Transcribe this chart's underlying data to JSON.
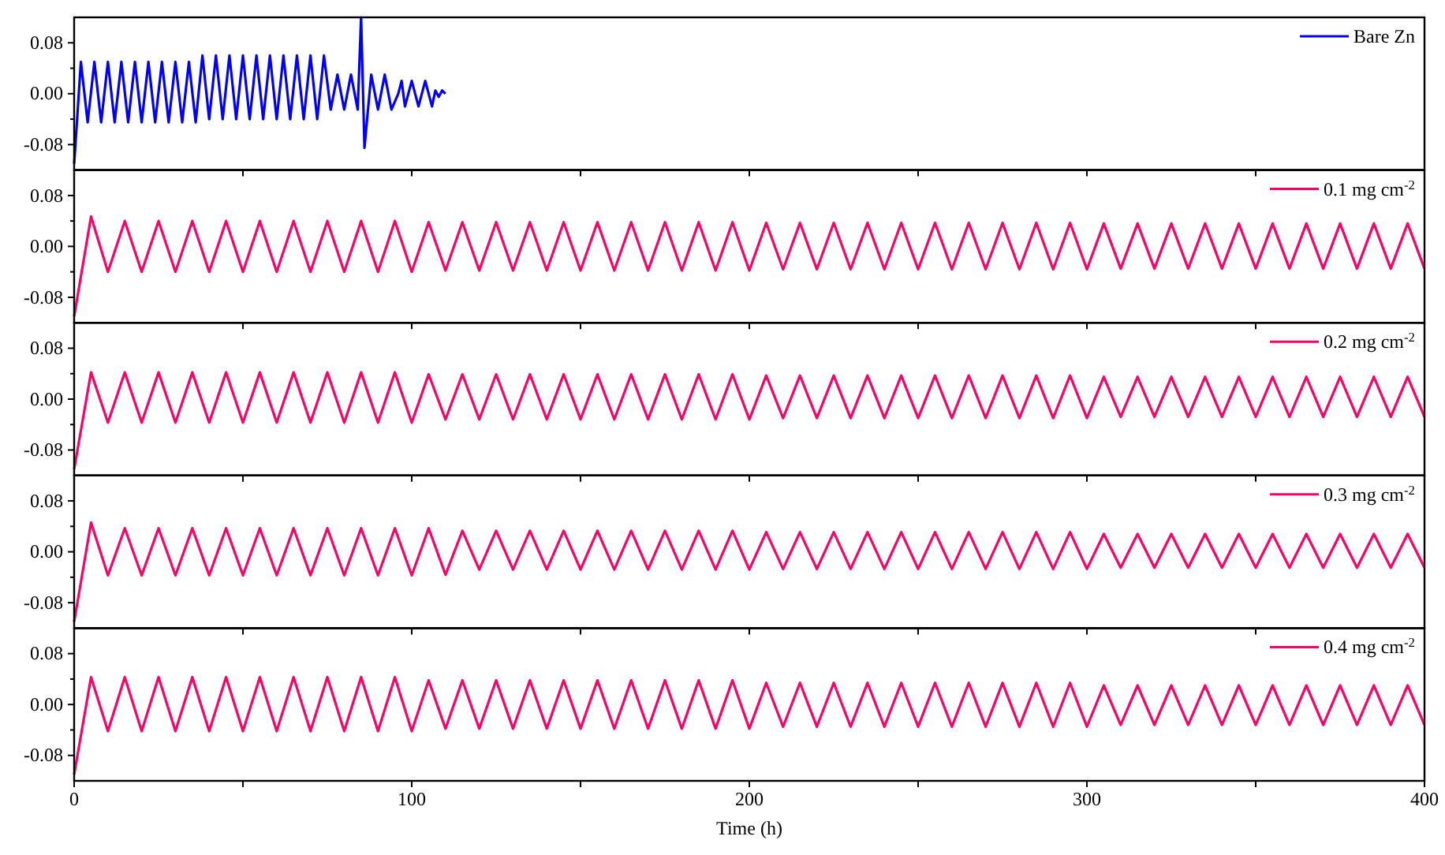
{
  "chart_data": [
    {
      "type": "line",
      "legend": "top right",
      "tick_labels": "y",
      "xlim": [
        0,
        400
      ],
      "xticks": [
        {
          "value": 0,
          "label": null
        },
        {
          "value": 50,
          "label": null
        },
        {
          "value": 100,
          "label": null
        },
        {
          "value": 150,
          "label": null
        },
        {
          "value": 200,
          "label": null
        },
        {
          "value": 250,
          "label": null
        },
        {
          "value": 300,
          "label": null
        },
        {
          "value": 350,
          "label": null
        },
        {
          "value": 400,
          "label": null
        }
      ],
      "ylim": [
        -0.12,
        0.12
      ],
      "yticks": [
        {
          "value": -0.08,
          "label": "-0.08"
        },
        {
          "value": -0.04,
          "label": null
        },
        {
          "value": 0,
          "label": "0.00"
        },
        {
          "value": 0.04,
          "label": null
        },
        {
          "value": 0.08,
          "label": "0.08"
        }
      ],
      "series": [
        {
          "name": "Bare Zn",
          "color": "#0000ff",
          "x": [
            0,
            2,
            4,
            6,
            8,
            10,
            12,
            14,
            16,
            18,
            20,
            22,
            24,
            26,
            28,
            30,
            32,
            34,
            36,
            38,
            40,
            42,
            44,
            46,
            48,
            50,
            52,
            54,
            56,
            58,
            60,
            62,
            64,
            66,
            68,
            70,
            72,
            74,
            76,
            78,
            80,
            82,
            84,
            85,
            86,
            88,
            90,
            92,
            94,
            96,
            97,
            98,
            100,
            102,
            104,
            106,
            107,
            108,
            109,
            110
          ],
          "values": [
            -0.11,
            0.05,
            -0.045,
            0.05,
            -0.045,
            0.05,
            -0.045,
            0.05,
            -0.045,
            0.05,
            -0.045,
            0.05,
            -0.045,
            0.05,
            -0.045,
            0.05,
            -0.045,
            0.05,
            -0.045,
            0.06,
            -0.04,
            0.06,
            -0.04,
            0.06,
            -0.04,
            0.06,
            -0.04,
            0.06,
            -0.04,
            0.06,
            -0.04,
            0.06,
            -0.04,
            0.06,
            -0.04,
            0.06,
            -0.04,
            0.06,
            -0.025,
            0.03,
            -0.025,
            0.03,
            -0.025,
            0.12,
            -0.085,
            0.03,
            -0.025,
            0.03,
            -0.025,
            0,
            0.02,
            -0.02,
            0.02,
            -0.02,
            0.02,
            -0.02,
            0.005,
            -0.005,
            0.005,
            0
          ]
        }
      ]
    },
    {
      "type": "line",
      "legend": "top right",
      "tick_labels": "y",
      "xlim": [
        0,
        400
      ],
      "xticks": [
        {
          "value": 0,
          "label": null
        },
        {
          "value": 50,
          "label": null
        },
        {
          "value": 100,
          "label": null
        },
        {
          "value": 150,
          "label": null
        },
        {
          "value": 200,
          "label": null
        },
        {
          "value": 250,
          "label": null
        },
        {
          "value": 300,
          "label": null
        },
        {
          "value": 350,
          "label": null
        },
        {
          "value": 400,
          "label": null
        }
      ],
      "ylim": [
        -0.12,
        0.12
      ],
      "yticks": [
        {
          "value": -0.08,
          "label": "-0.08"
        },
        {
          "value": -0.04,
          "label": null
        },
        {
          "value": 0,
          "label": "0.00"
        },
        {
          "value": 0.04,
          "label": null
        },
        {
          "value": 0.08,
          "label": "0.08"
        }
      ],
      "series": [
        {
          "name": "0.1 mg cm$^{-2}$",
          "color": "#ff0066",
          "x": [
            0,
            5,
            10,
            15,
            20,
            25,
            30,
            35,
            40,
            45,
            50,
            55,
            60,
            65,
            70,
            75,
            80,
            85,
            90,
            95,
            100,
            105,
            110,
            115,
            120,
            125,
            130,
            135,
            140,
            145,
            150,
            155,
            160,
            165,
            170,
            175,
            180,
            185,
            190,
            195,
            200,
            205,
            210,
            215,
            220,
            225,
            230,
            235,
            240,
            245,
            250,
            255,
            260,
            265,
            270,
            275,
            280,
            285,
            290,
            295,
            300,
            305,
            310,
            315,
            320,
            325,
            330,
            335,
            340,
            345,
            350,
            355,
            360,
            365,
            370,
            375,
            380,
            385,
            390,
            395,
            400
          ],
          "values": [
            -0.11,
            0.047,
            -0.04,
            0.04,
            -0.04,
            0.04,
            -0.04,
            0.04,
            -0.04,
            0.04,
            -0.04,
            0.04,
            -0.04,
            0.04,
            -0.04,
            0.04,
            -0.04,
            0.04,
            -0.04,
            0.04,
            -0.04,
            0.038,
            -0.038,
            0.038,
            -0.038,
            0.038,
            -0.038,
            0.038,
            -0.038,
            0.038,
            -0.038,
            0.038,
            -0.038,
            0.038,
            -0.038,
            0.038,
            -0.038,
            0.038,
            -0.038,
            0.038,
            -0.038,
            0.037,
            -0.036,
            0.037,
            -0.036,
            0.037,
            -0.036,
            0.037,
            -0.036,
            0.037,
            -0.036,
            0.037,
            -0.036,
            0.037,
            -0.036,
            0.037,
            -0.036,
            0.037,
            -0.036,
            0.037,
            -0.036,
            0.036,
            -0.035,
            0.036,
            -0.035,
            0.036,
            -0.035,
            0.036,
            -0.035,
            0.036,
            -0.035,
            0.036,
            -0.035,
            0.036,
            -0.035,
            0.036,
            -0.035,
            0.036,
            -0.035,
            0.036,
            -0.035
          ]
        }
      ]
    },
    {
      "type": "line",
      "legend": "top right",
      "tick_labels": "y",
      "xlim": [
        0,
        400
      ],
      "xticks": [
        {
          "value": 0,
          "label": null
        },
        {
          "value": 50,
          "label": null
        },
        {
          "value": 100,
          "label": null
        },
        {
          "value": 150,
          "label": null
        },
        {
          "value": 200,
          "label": null
        },
        {
          "value": 250,
          "label": null
        },
        {
          "value": 300,
          "label": null
        },
        {
          "value": 350,
          "label": null
        },
        {
          "value": 400,
          "label": null
        }
      ],
      "ylim": [
        -0.12,
        0.12
      ],
      "yticks": [
        {
          "value": -0.08,
          "label": "-0.08"
        },
        {
          "value": -0.04,
          "label": null
        },
        {
          "value": 0,
          "label": "0.00"
        },
        {
          "value": 0.04,
          "label": null
        },
        {
          "value": 0.08,
          "label": "0.08"
        }
      ],
      "series": [
        {
          "name": "0.2 mg cm$^{-2}$",
          "color": "#ff0066",
          "x": [
            0,
            5,
            10,
            15,
            20,
            25,
            30,
            35,
            40,
            45,
            50,
            55,
            60,
            65,
            70,
            75,
            80,
            85,
            90,
            95,
            100,
            105,
            110,
            115,
            120,
            125,
            130,
            135,
            140,
            145,
            150,
            155,
            160,
            165,
            170,
            175,
            180,
            185,
            190,
            195,
            200,
            205,
            210,
            215,
            220,
            225,
            230,
            235,
            240,
            245,
            250,
            255,
            260,
            265,
            270,
            275,
            280,
            285,
            290,
            295,
            300,
            305,
            310,
            315,
            320,
            325,
            330,
            335,
            340,
            345,
            350,
            355,
            360,
            365,
            370,
            375,
            380,
            385,
            390,
            395,
            400
          ],
          "values": [
            -0.11,
            0.042,
            -0.037,
            0.042,
            -0.037,
            0.042,
            -0.037,
            0.042,
            -0.037,
            0.042,
            -0.037,
            0.042,
            -0.037,
            0.042,
            -0.037,
            0.042,
            -0.037,
            0.042,
            -0.037,
            0.042,
            -0.037,
            0.039,
            -0.032,
            0.039,
            -0.032,
            0.039,
            -0.032,
            0.039,
            -0.032,
            0.039,
            -0.032,
            0.039,
            -0.032,
            0.039,
            -0.032,
            0.039,
            -0.032,
            0.039,
            -0.032,
            0.039,
            -0.032,
            0.037,
            -0.03,
            0.037,
            -0.03,
            0.037,
            -0.03,
            0.037,
            -0.03,
            0.037,
            -0.03,
            0.037,
            -0.03,
            0.037,
            -0.03,
            0.037,
            -0.03,
            0.037,
            -0.03,
            0.037,
            -0.03,
            0.035,
            -0.028,
            0.035,
            -0.028,
            0.035,
            -0.028,
            0.035,
            -0.028,
            0.035,
            -0.028,
            0.035,
            -0.028,
            0.035,
            -0.028,
            0.035,
            -0.028,
            0.035,
            -0.028,
            0.035,
            -0.028
          ]
        }
      ]
    },
    {
      "type": "line",
      "legend": "top right",
      "tick_labels": "y",
      "xlim": [
        0,
        400
      ],
      "xticks": [
        {
          "value": 0,
          "label": null
        },
        {
          "value": 50,
          "label": null
        },
        {
          "value": 100,
          "label": null
        },
        {
          "value": 150,
          "label": null
        },
        {
          "value": 200,
          "label": null
        },
        {
          "value": 250,
          "label": null
        },
        {
          "value": 300,
          "label": null
        },
        {
          "value": 350,
          "label": null
        },
        {
          "value": 400,
          "label": null
        }
      ],
      "ylim": [
        -0.12,
        0.12
      ],
      "yticks": [
        {
          "value": -0.08,
          "label": "-0.08"
        },
        {
          "value": -0.04,
          "label": null
        },
        {
          "value": 0,
          "label": "0.00"
        },
        {
          "value": 0.04,
          "label": null
        },
        {
          "value": 0.08,
          "label": "0.08"
        }
      ],
      "series": [
        {
          "name": "0.3 mg cm$^{-2}$",
          "color": "#ff0066",
          "x": [
            0,
            5,
            10,
            15,
            20,
            25,
            30,
            35,
            40,
            45,
            50,
            55,
            60,
            65,
            70,
            75,
            80,
            85,
            90,
            95,
            100,
            105,
            110,
            115,
            120,
            125,
            130,
            135,
            140,
            145,
            150,
            155,
            160,
            165,
            170,
            175,
            180,
            185,
            190,
            195,
            200,
            205,
            210,
            215,
            220,
            225,
            230,
            235,
            240,
            245,
            250,
            255,
            260,
            265,
            270,
            275,
            280,
            285,
            290,
            295,
            300,
            305,
            310,
            315,
            320,
            325,
            330,
            335,
            340,
            345,
            350,
            355,
            360,
            365,
            370,
            375,
            380,
            385,
            390,
            395,
            400
          ],
          "values": [
            -0.11,
            0.046,
            -0.037,
            0.037,
            -0.037,
            0.037,
            -0.037,
            0.037,
            -0.037,
            0.037,
            -0.037,
            0.037,
            -0.037,
            0.037,
            -0.037,
            0.037,
            -0.037,
            0.037,
            -0.037,
            0.037,
            -0.037,
            0.037,
            -0.036,
            0.033,
            -0.028,
            0.033,
            -0.028,
            0.033,
            -0.028,
            0.033,
            -0.028,
            0.033,
            -0.028,
            0.033,
            -0.028,
            0.033,
            -0.028,
            0.033,
            -0.028,
            0.033,
            -0.028,
            0.031,
            -0.027,
            0.031,
            -0.027,
            0.031,
            -0.027,
            0.031,
            -0.027,
            0.031,
            -0.027,
            0.031,
            -0.027,
            0.031,
            -0.027,
            0.031,
            -0.027,
            0.031,
            -0.027,
            0.031,
            -0.027,
            0.028,
            -0.025,
            0.028,
            -0.025,
            0.028,
            -0.025,
            0.028,
            -0.025,
            0.028,
            -0.025,
            0.028,
            -0.025,
            0.028,
            -0.025,
            0.028,
            -0.025,
            0.028,
            -0.025,
            0.028,
            -0.025
          ]
        }
      ]
    },
    {
      "type": "line",
      "legend": "top right",
      "xlabel": "Time (h)",
      "xlim": [
        0,
        400
      ],
      "xticks": [
        0,
        {
          "value": 50,
          "label": null
        },
        100,
        {
          "value": 150,
          "label": null
        },
        200,
        {
          "value": 250,
          "label": null
        },
        300,
        {
          "value": 350,
          "label": null
        },
        400
      ],
      "ylim": [
        -0.12,
        0.12
      ],
      "yticks": [
        {
          "value": -0.08,
          "label": "-0.08"
        },
        {
          "value": -0.04,
          "label": null
        },
        {
          "value": 0,
          "label": "0.00"
        },
        {
          "value": 0.04,
          "label": null
        },
        {
          "value": 0.08,
          "label": "0.08"
        }
      ],
      "series": [
        {
          "name": "0.4 mg cm$^{-2}$",
          "color": "#ff0066",
          "x": [
            0,
            5,
            10,
            15,
            20,
            25,
            30,
            35,
            40,
            45,
            50,
            55,
            60,
            65,
            70,
            75,
            80,
            85,
            90,
            95,
            100,
            105,
            110,
            115,
            120,
            125,
            130,
            135,
            140,
            145,
            150,
            155,
            160,
            165,
            170,
            175,
            180,
            185,
            190,
            195,
            200,
            205,
            210,
            215,
            220,
            225,
            230,
            235,
            240,
            245,
            250,
            255,
            260,
            265,
            270,
            275,
            280,
            285,
            290,
            295,
            300,
            305,
            310,
            315,
            320,
            325,
            330,
            335,
            340,
            345,
            350,
            355,
            360,
            365,
            370,
            375,
            380,
            385,
            390,
            395,
            400
          ],
          "values": [
            -0.11,
            0.043,
            -0.042,
            0.043,
            -0.042,
            0.043,
            -0.042,
            0.043,
            -0.042,
            0.043,
            -0.042,
            0.043,
            -0.042,
            0.043,
            -0.042,
            0.043,
            -0.042,
            0.043,
            -0.042,
            0.043,
            -0.042,
            0.038,
            -0.038,
            0.038,
            -0.038,
            0.038,
            -0.038,
            0.038,
            -0.038,
            0.038,
            -0.038,
            0.038,
            -0.038,
            0.038,
            -0.038,
            0.038,
            -0.038,
            0.038,
            -0.038,
            0.038,
            -0.038,
            0.034,
            -0.035,
            0.034,
            -0.035,
            0.034,
            -0.035,
            0.034,
            -0.035,
            0.034,
            -0.035,
            0.034,
            -0.035,
            0.034,
            -0.035,
            0.034,
            -0.035,
            0.034,
            -0.035,
            0.034,
            -0.035,
            0.03,
            -0.032,
            0.03,
            -0.032,
            0.03,
            -0.032,
            0.03,
            -0.032,
            0.03,
            -0.032,
            0.03,
            -0.032,
            0.03,
            -0.032,
            0.03,
            -0.032,
            0.03,
            -0.032,
            0.03,
            -0.032
          ]
        }
      ]
    }
  ]
}
